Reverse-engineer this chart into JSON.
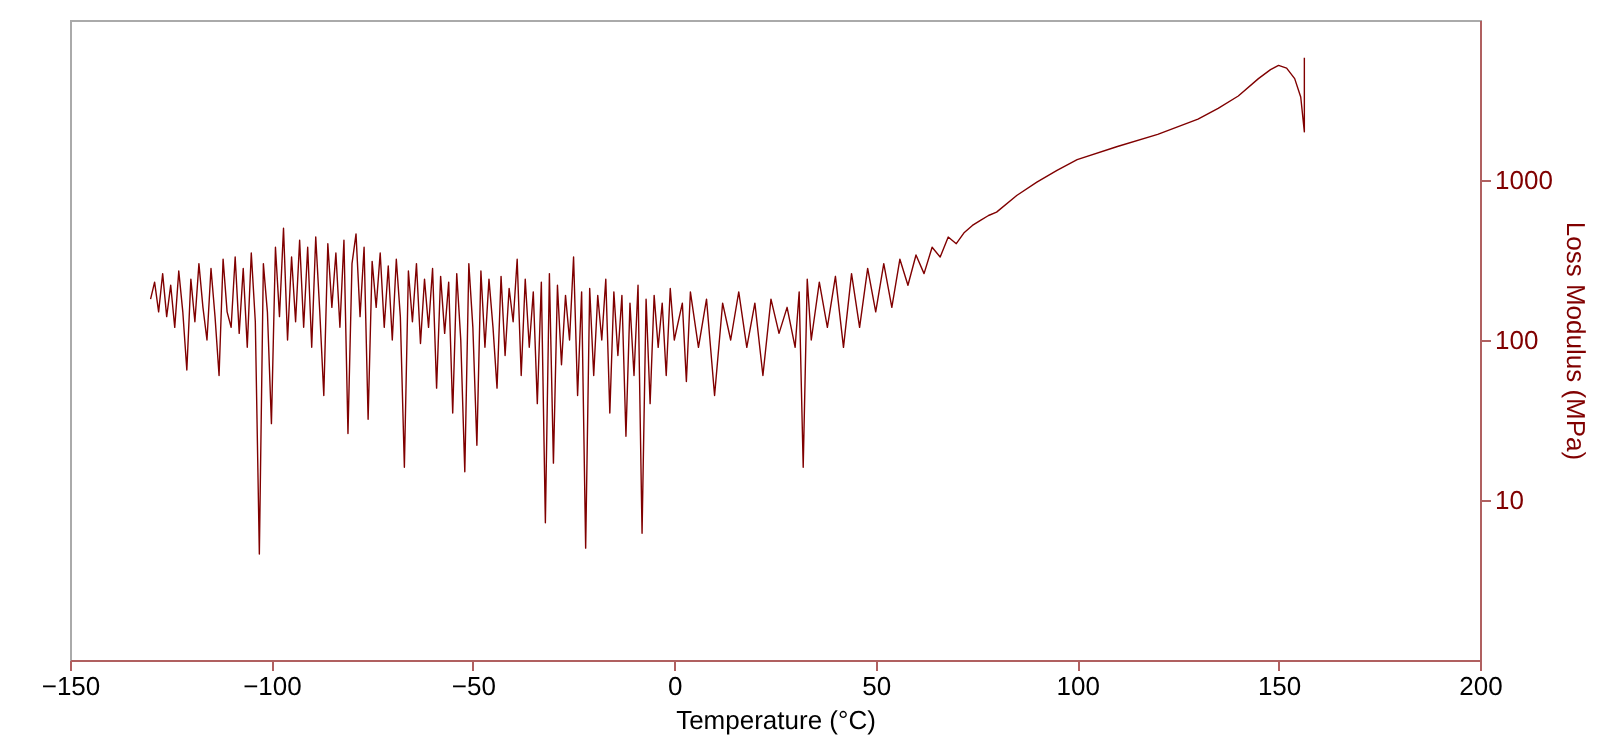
{
  "chart_data": {
    "type": "line",
    "xlabel": "Temperature (°C)",
    "ylabel": "Loss Modulus (MPa)",
    "log": "y",
    "xlim": [
      -150,
      200
    ],
    "xticks": [
      -150,
      -100,
      -50,
      0,
      50,
      100,
      150,
      200
    ],
    "ylim": [
      1,
      10000
    ],
    "yticks": [
      10,
      100,
      1000
    ],
    "grid": false,
    "x": [
      -130,
      -129,
      -128,
      -127,
      -126,
      -125,
      -124,
      -123,
      -122,
      -121,
      -120,
      -119,
      -118,
      -117,
      -116,
      -115,
      -114,
      -113,
      -112,
      -111,
      -110,
      -109,
      -108,
      -107,
      -106,
      -105,
      -104,
      -103,
      -102,
      -101,
      -100,
      -99,
      -98,
      -97,
      -96,
      -95,
      -94,
      -93,
      -92,
      -91,
      -90,
      -89,
      -88,
      -87,
      -86,
      -85,
      -84,
      -83,
      -82,
      -81,
      -80,
      -79,
      -78,
      -77,
      -76,
      -75,
      -74,
      -73,
      -72,
      -71,
      -70,
      -69,
      -68,
      -67,
      -66,
      -65,
      -64,
      -63,
      -62,
      -61,
      -60,
      -59,
      -58,
      -57,
      -56,
      -55,
      -54,
      -53,
      -52,
      -51,
      -50,
      -49,
      -48,
      -47,
      -46,
      -45,
      -44,
      -43,
      -42,
      -41,
      -40,
      -39,
      -38,
      -37,
      -36,
      -35,
      -34,
      -33,
      -32,
      -31,
      -30,
      -29,
      -28,
      -27,
      -26,
      -25,
      -24,
      -23,
      -22,
      -21,
      -20,
      -19,
      -18,
      -17,
      -16,
      -15,
      -14,
      -13,
      -12,
      -11,
      -10,
      -9,
      -8,
      -7,
      -6,
      -5,
      -4,
      -3,
      -2,
      -1,
      0,
      2,
      3,
      4,
      6,
      8,
      10,
      12,
      14,
      16,
      18,
      20,
      22,
      24,
      26,
      28,
      30,
      31,
      32,
      33,
      34,
      36,
      38,
      40,
      42,
      44,
      46,
      48,
      50,
      52,
      54,
      56,
      58,
      60,
      62,
      64,
      66,
      68,
      70,
      72,
      74,
      76,
      78,
      80,
      85,
      90,
      95,
      100,
      110,
      120,
      130,
      135,
      140,
      145,
      148,
      150,
      152,
      154,
      155.5,
      156.4,
      156.4
    ],
    "series": [
      {
        "color": "#800000",
        "values": [
          180,
          230,
          150,
          260,
          140,
          220,
          120,
          270,
          150,
          65,
          240,
          130,
          300,
          160,
          100,
          280,
          140,
          60,
          320,
          150,
          120,
          330,
          110,
          280,
          90,
          350,
          130,
          4.6,
          300,
          150,
          30,
          380,
          140,
          500,
          100,
          330,
          130,
          420,
          120,
          380,
          90,
          440,
          150,
          45,
          400,
          160,
          350,
          120,
          420,
          26,
          300,
          460,
          140,
          380,
          32,
          310,
          160,
          350,
          120,
          290,
          100,
          320,
          140,
          16,
          270,
          130,
          300,
          95,
          240,
          120,
          280,
          50,
          250,
          110,
          230,
          35,
          260,
          100,
          15,
          300,
          120,
          22,
          270,
          90,
          240,
          120,
          50,
          250,
          80,
          210,
          130,
          320,
          60,
          240,
          90,
          200,
          40,
          230,
          7.2,
          260,
          17,
          220,
          70,
          190,
          100,
          330,
          45,
          200,
          5,
          210,
          60,
          190,
          100,
          240,
          35,
          200,
          80,
          190,
          25,
          170,
          60,
          220,
          6.2,
          180,
          40,
          190,
          90,
          170,
          60,
          210,
          100,
          170,
          55,
          200,
          90,
          180,
          45,
          170,
          100,
          200,
          90,
          170,
          60,
          180,
          110,
          160,
          90,
          200,
          16,
          240,
          100,
          230,
          120,
          250,
          90,
          260,
          120,
          280,
          150,
          300,
          160,
          320,
          220,
          340,
          260,
          380,
          330,
          440,
          400,
          470,
          520,
          560,
          600,
          630,
          800,
          970,
          1150,
          1340,
          1620,
          1930,
          2400,
          2800,
          3350,
          4300,
          4900,
          5200,
          5000,
          4300,
          3300,
          2000,
          5800
        ]
      }
    ]
  }
}
